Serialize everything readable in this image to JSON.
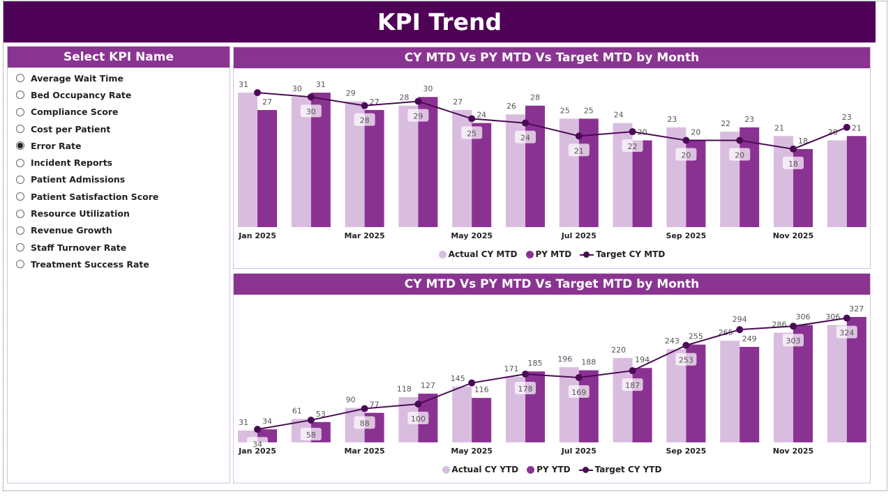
{
  "header": {
    "title": "KPI Trend"
  },
  "sidebar": {
    "title": "Select KPI Name",
    "selected": "Error Rate",
    "items": [
      "Average Wait Time",
      "Bed Occupancy Rate",
      "Compliance Score",
      "Cost per Patient",
      "Error Rate",
      "Incident Reports",
      "Patient Admissions",
      "Patient Satisfaction Score",
      "Resource Utilization",
      "Revenue Growth",
      "Staff Turnover Rate",
      "Treatment Success Rate"
    ]
  },
  "colors": {
    "header": "#4f0057",
    "panel_header": "#8a3492",
    "actual": "#d9bddf",
    "py": "#8a3292",
    "target": "#4b0a55"
  },
  "chart_data": [
    {
      "type": "bar",
      "title": "CY MTD Vs PY MTD Vs Target MTD by Month",
      "categories": [
        "Jan 2025",
        "Feb 2025",
        "Mar 2025",
        "Apr 2025",
        "May 2025",
        "Jun 2025",
        "Jul 2025",
        "Aug 2025",
        "Sep 2025",
        "Oct 2025",
        "Nov 2025",
        "Dec 2025"
      ],
      "tick_labels": [
        "Jan 2025",
        "Mar 2025",
        "May 2025",
        "Jul 2025",
        "Sep 2025",
        "Nov 2025"
      ],
      "legend": [
        "Actual CY MTD",
        "PY MTD",
        "Target CY MTD"
      ],
      "series": [
        {
          "name": "Actual CY MTD",
          "kind": "bar",
          "values": [
            31,
            30,
            29,
            28,
            27,
            26,
            25,
            24,
            23,
            22,
            21,
            20
          ]
        },
        {
          "name": "PY MTD",
          "kind": "bar",
          "values": [
            27,
            31,
            27,
            30,
            24,
            28,
            25,
            20,
            20,
            23,
            18,
            21
          ]
        },
        {
          "name": "Target CY MTD",
          "kind": "line",
          "values": [
            31,
            30,
            28,
            29,
            25,
            24,
            21,
            22,
            20,
            20,
            18,
            23
          ],
          "label_hidden": [
            0
          ]
        }
      ],
      "ylim": [
        0,
        31
      ],
      "legend_position": "bottom",
      "grid": false
    },
    {
      "type": "bar",
      "title": "CY MTD Vs PY MTD Vs Target MTD by Month",
      "categories": [
        "Jan 2025",
        "Feb 2025",
        "Mar 2025",
        "Apr 2025",
        "May 2025",
        "Jun 2025",
        "Jul 2025",
        "Aug 2025",
        "Sep 2025",
        "Oct 2025",
        "Nov 2025",
        "Dec 2025"
      ],
      "tick_labels": [
        "Jan 2025",
        "Mar 2025",
        "May 2025",
        "Jul 2025",
        "Sep 2025",
        "Nov 2025"
      ],
      "legend": [
        "Actual CY YTD",
        "PY YTD",
        "Target CY YTD"
      ],
      "series": [
        {
          "name": "Actual CY YTD",
          "kind": "bar",
          "values": [
            31,
            61,
            90,
            118,
            145,
            171,
            196,
            220,
            243,
            265,
            286,
            306
          ]
        },
        {
          "name": "PY YTD",
          "kind": "bar",
          "values": [
            34,
            53,
            77,
            127,
            116,
            185,
            188,
            194,
            255,
            249,
            306,
            327
          ]
        },
        {
          "name": "Target CY YTD",
          "kind": "line",
          "values": [
            34,
            58,
            88,
            100,
            155,
            178,
            169,
            187,
            253,
            294,
            303,
            324
          ],
          "label_hidden": [
            4
          ]
        }
      ],
      "ylim": [
        0,
        327
      ],
      "legend_position": "bottom",
      "grid": false
    }
  ]
}
